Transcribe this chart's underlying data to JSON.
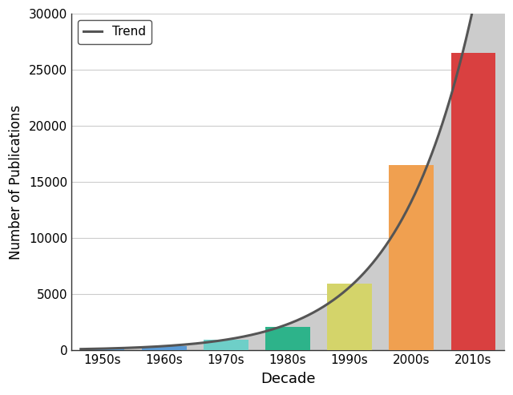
{
  "categories": [
    "1950s",
    "1960s",
    "1970s",
    "1980s",
    "1990s",
    "2000s",
    "2010s"
  ],
  "bar_values": [
    150,
    350,
    900,
    2100,
    5900,
    16500,
    26500
  ],
  "bar_colors": [
    "#5b9bd5",
    "#5b9bd5",
    "#6ecfc8",
    "#2db38a",
    "#d4d46a",
    "#f0a050",
    "#d94040"
  ],
  "trend_color": "#555555",
  "fill_color": "#cccccc",
  "ylabel": "Number of Publications",
  "xlabel": "Decade",
  "ylim": [
    0,
    30000
  ],
  "yticks": [
    0,
    5000,
    10000,
    15000,
    20000,
    25000,
    30000
  ],
  "legend_label": "Trend",
  "bg_color": "#ffffff",
  "grid_color": "#cccccc",
  "fig_width": 6.4,
  "fig_height": 4.93,
  "dpi": 100
}
